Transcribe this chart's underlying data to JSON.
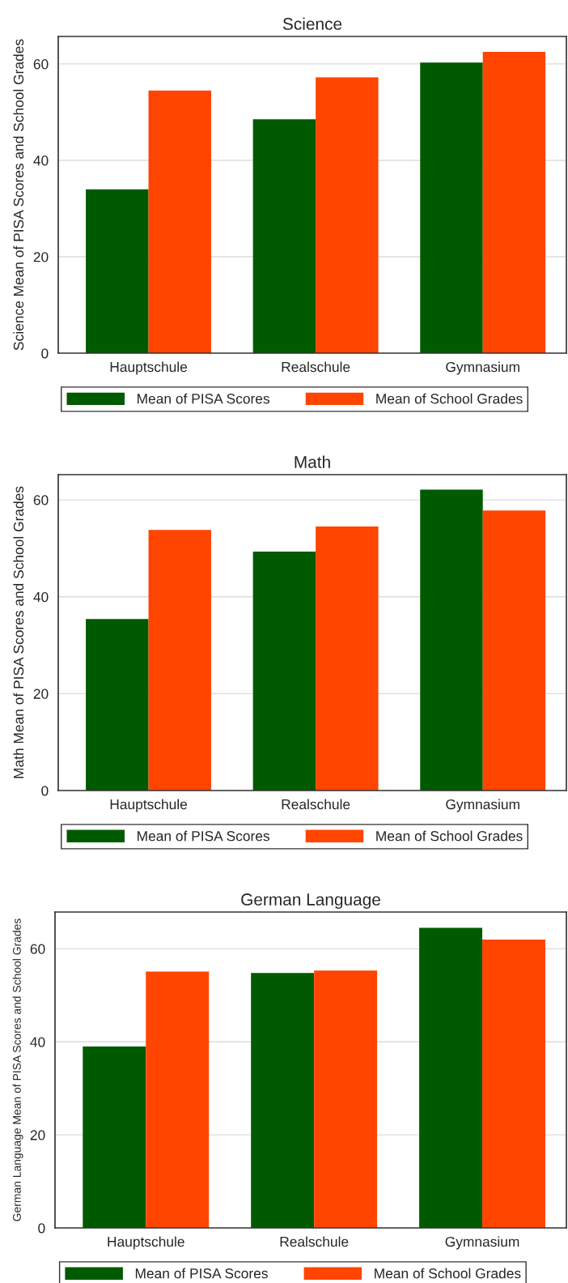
{
  "chart_data": [
    {
      "type": "bar",
      "title": "Science",
      "ylabel": "Science Mean of PISA Scores and School Grades",
      "categories": [
        "Hauptschule",
        "Realschule",
        "Gymnasium"
      ],
      "series": [
        {
          "name": "Mean of PISA Scores",
          "color": "#005a00",
          "values": [
            34.0,
            48.5,
            60.3
          ]
        },
        {
          "name": "Mean of School Grades",
          "color": "#ff4500",
          "values": [
            54.5,
            57.2,
            62.5
          ]
        }
      ],
      "ylim": [
        0,
        65.7
      ],
      "yticks": [
        0,
        20,
        40,
        60
      ],
      "grid": "y",
      "legend": "bottom"
    },
    {
      "type": "bar",
      "title": "Math",
      "ylabel": "Math Mean of PISA Scores and School Grades",
      "categories": [
        "Hauptschule",
        "Realschule",
        "Gymnasium"
      ],
      "series": [
        {
          "name": "Mean of PISA Scores",
          "color": "#005a00",
          "values": [
            35.4,
            49.3,
            62.1
          ]
        },
        {
          "name": "Mean of School Grades",
          "color": "#ff4500",
          "values": [
            53.8,
            54.5,
            57.8
          ]
        }
      ],
      "ylim": [
        0,
        65.2
      ],
      "yticks": [
        0,
        20,
        40,
        60
      ],
      "grid": "y",
      "legend": "bottom"
    },
    {
      "type": "bar",
      "title": "German Language",
      "ylabel": "German Language Mean of PISA Scores and School Grades",
      "categories": [
        "Hauptschule",
        "Realschule",
        "Gymnasium"
      ],
      "series": [
        {
          "name": "Mean of PISA Scores",
          "color": "#005a00",
          "values": [
            39.0,
            54.8,
            64.5
          ]
        },
        {
          "name": "Mean of School Grades",
          "color": "#ff4500",
          "values": [
            55.1,
            55.3,
            62.0
          ]
        }
      ],
      "ylim": [
        0,
        67.9
      ],
      "yticks": [
        0,
        20,
        40,
        60
      ],
      "grid": "y",
      "legend": "bottom"
    }
  ]
}
